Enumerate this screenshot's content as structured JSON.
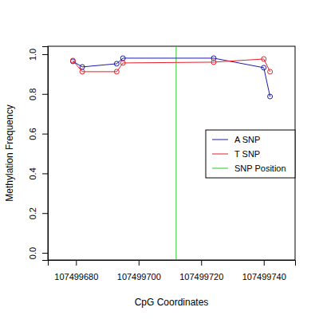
{
  "chart_data": {
    "type": "line",
    "x_label": "CpG Coordinates",
    "y_label": "Methylation Frequency",
    "x": [
      107499679,
      107499682,
      107499693,
      107499695,
      107499724,
      107499740,
      107499742
    ],
    "series": [
      {
        "name": "A SNP",
        "color": "#1c1ca8",
        "marker": "circle",
        "line_style": "solid",
        "values": [
          0.964,
          0.936,
          0.952,
          0.98,
          0.98,
          0.932,
          0.787
        ]
      },
      {
        "name": "T SNP",
        "color": "#e8202a",
        "marker": "circle",
        "line_style": "solid",
        "values": [
          0.968,
          0.912,
          0.912,
          0.956,
          0.96,
          0.976,
          0.912
        ]
      }
    ],
    "snp_position": {
      "name": "SNP Position",
      "color": "#22cc22",
      "x": 107499712
    },
    "xlim": [
      107499671,
      107499750
    ],
    "ylim": [
      -0.036,
      1.04
    ],
    "xticks": [
      107499680,
      107499700,
      107499720,
      107499740
    ],
    "yticks": [
      {
        "value": 0,
        "label": "0.0"
      },
      0.2,
      0.4,
      0.6,
      0.8,
      {
        "value": 1,
        "label": "1.0"
      }
    ],
    "legend": "right",
    "grid": false
  }
}
